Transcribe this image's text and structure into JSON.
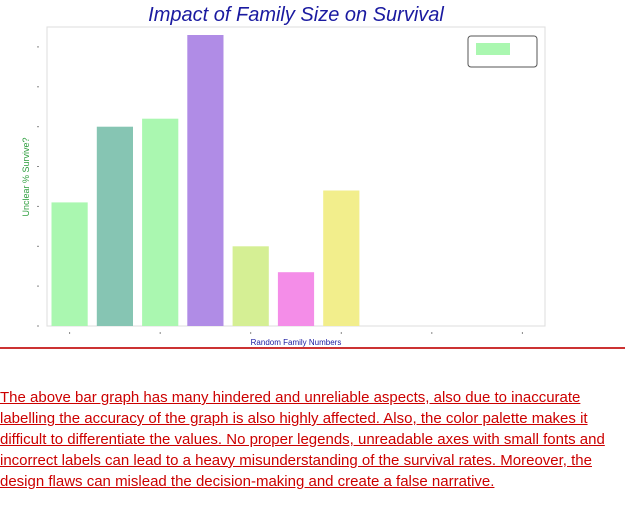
{
  "chart_data": {
    "type": "bar",
    "title": "Impact of Family Size on Survival",
    "xlabel": "Random Family Numbers",
    "ylabel": "Unclear % Survive?",
    "values": [
      3.1,
      5.0,
      5.2,
      7.3,
      2.0,
      1.35,
      3.4
    ],
    "colors": [
      "#aaf7b0",
      "#86c5b3",
      "#aaf7b0",
      "#b08ce6",
      "#d5ef94",
      "#f48de8",
      "#f2ee8c"
    ],
    "ylim": [
      0,
      7.5
    ],
    "xlim": [
      -0.5,
      10.5
    ],
    "legend": {
      "placement": "top-right",
      "entries": [
        {
          "color": "#aaf7b0",
          "label": ""
        }
      ]
    },
    "grid": false
  },
  "caption": {
    "text": "The above bar graph has many hindered and unreliable aspects, also due to inaccurate labelling the accuracy of the graph is also highly affected. Also, the color palette makes it difficult to differentiate the values. No proper legends, unreadable axes with small fonts and incorrect labels can lead to a heavy misunderstanding of the survival rates. Moreover, the design flaws can mislead the decision-making and create a false narrative."
  },
  "colors": {
    "title": "#1a1aa0",
    "xlabel": "#1a1aa0",
    "ylabel": "#2e9e3e",
    "caption": "#cc0000",
    "divider": "#cc3333",
    "axes_frame": "#dddddd"
  }
}
